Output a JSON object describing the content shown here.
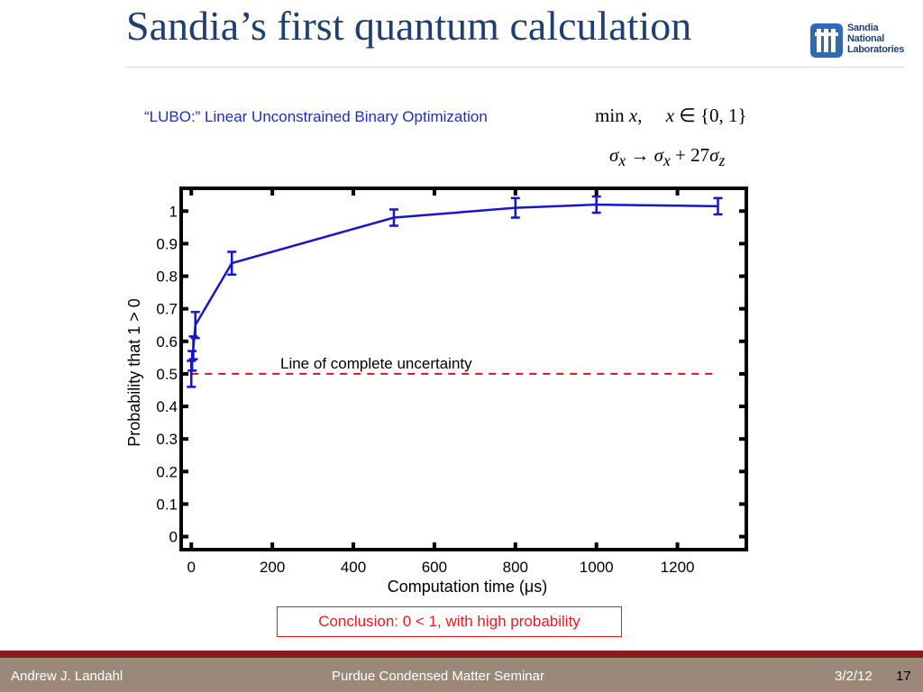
{
  "slide": {
    "title": "Sandia’s first quantum calculation",
    "logo_text": [
      "Sandia",
      "National",
      "Laboratories"
    ],
    "subtitle": "“LUBO:” Linear Unconstrained Binary Optimization",
    "conclusion": "Conclusion:  0 < 1, with high probability"
  },
  "footer": {
    "author": "Andrew J. Landahl",
    "event": "Purdue Condensed Matter Seminar",
    "date": "3/2/12",
    "page": "17"
  },
  "colors": {
    "title": "#1f3f73",
    "subtitle": "#1f2fb8",
    "series": "#1515d0",
    "reference_line": "#e01010",
    "conclusion": "#e02020",
    "footer_bar": "#9c8878",
    "footer_rule": "#8b1a1a"
  },
  "chart_data": {
    "type": "line",
    "xlabel": "Computation time (μs)",
    "ylabel": "Probability that 1 > 0",
    "xlim": [
      -25,
      1370
    ],
    "ylim": [
      -0.04,
      1.07
    ],
    "xticks": [
      0,
      200,
      400,
      600,
      800,
      1000,
      1200
    ],
    "yticks": [
      0,
      0.1,
      0.2,
      0.3,
      0.4,
      0.5,
      0.6,
      0.7,
      0.8,
      0.9,
      1
    ],
    "ytick_labels": [
      "0",
      "0.1",
      "0.2",
      "0.3",
      "0.4",
      "0.5",
      "0.6",
      "0.7",
      "0.8",
      "0.9",
      "1"
    ],
    "grid": false,
    "series": [
      {
        "x": [
          0,
          2,
          5,
          10,
          100,
          500,
          800,
          1000,
          1300
        ],
        "y": [
          0.5,
          0.54,
          0.58,
          0.65,
          0.84,
          0.98,
          1.01,
          1.02,
          1.015
        ],
        "err": [
          0.04,
          0.03,
          0.035,
          0.04,
          0.035,
          0.025,
          0.03,
          0.025,
          0.025
        ]
      }
    ],
    "reference_line": {
      "y": 0.5,
      "x_range": [
        0,
        1300
      ],
      "label": "Line of complete uncertainty"
    }
  }
}
